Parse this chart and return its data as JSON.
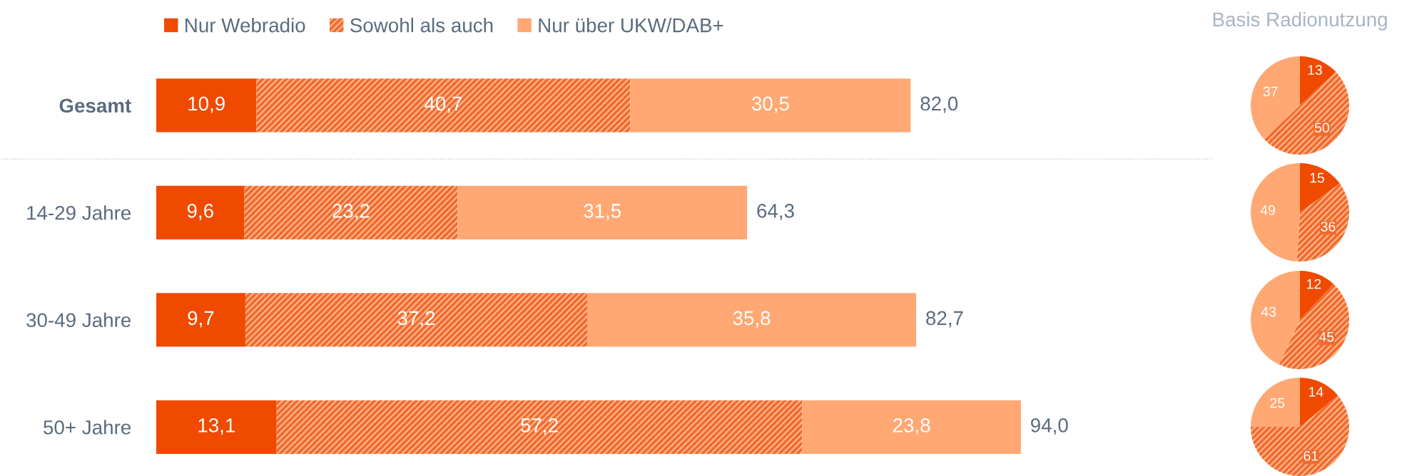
{
  "chart_data": [
    {
      "type": "bar",
      "orientation": "horizontal",
      "stacked": true,
      "categories": [
        "Gesamt",
        "14-29 Jahre",
        "30-49 Jahre",
        "50+ Jahre"
      ],
      "xlim": [
        0,
        115
      ],
      "tick_labels": "y",
      "legend": "top left",
      "grid": false,
      "series": [
        {
          "name": "Nur Webradio",
          "color": "#f04a00",
          "values": [
            10.9,
            9.6,
            9.7,
            13.1
          ],
          "value_labels": [
            "10,9",
            "9,6",
            "9,7",
            "13,1"
          ]
        },
        {
          "name": "Sowohl als auch",
          "color": "#f26a2e",
          "values": [
            40.7,
            23.2,
            37.2,
            57.2
          ],
          "value_labels": [
            "40,7",
            "23,2",
            "37,2",
            "57,2"
          ]
        },
        {
          "name": "Nur über UKW/DAB+",
          "color": "#ffa873",
          "values": [
            30.5,
            31.5,
            35.8,
            23.8
          ],
          "value_labels": [
            "30,5",
            "31,5",
            "35,8",
            "23,8"
          ]
        }
      ],
      "totals": [
        "82,0",
        "64,3",
        "82,7",
        "94,0"
      ]
    },
    {
      "type": "pie",
      "title": "Basis Radionutzung",
      "categories": [
        null,
        null,
        null
      ],
      "values": [
        13,
        50,
        37
      ],
      "colors": [
        "#f04a00",
        "#f26a2e",
        "#ffa873"
      ],
      "data_labels": true
    },
    {
      "type": "pie",
      "categories": [
        null,
        null,
        null
      ],
      "values": [
        15,
        36,
        49
      ],
      "colors": [
        "#f04a00",
        "#f26a2e",
        "#ffa873"
      ],
      "data_labels": true
    },
    {
      "type": "pie",
      "categories": [
        null,
        null,
        null
      ],
      "values": [
        12,
        45,
        43
      ],
      "colors": [
        "#f04a00",
        "#f26a2e",
        "#ffa873"
      ],
      "data_labels": true
    },
    {
      "type": "pie",
      "categories": [
        null,
        null,
        null
      ],
      "values": [
        14,
        61,
        25
      ],
      "colors": [
        "#f04a00",
        "#f26a2e",
        "#ffa873"
      ],
      "data_labels": true
    }
  ]
}
